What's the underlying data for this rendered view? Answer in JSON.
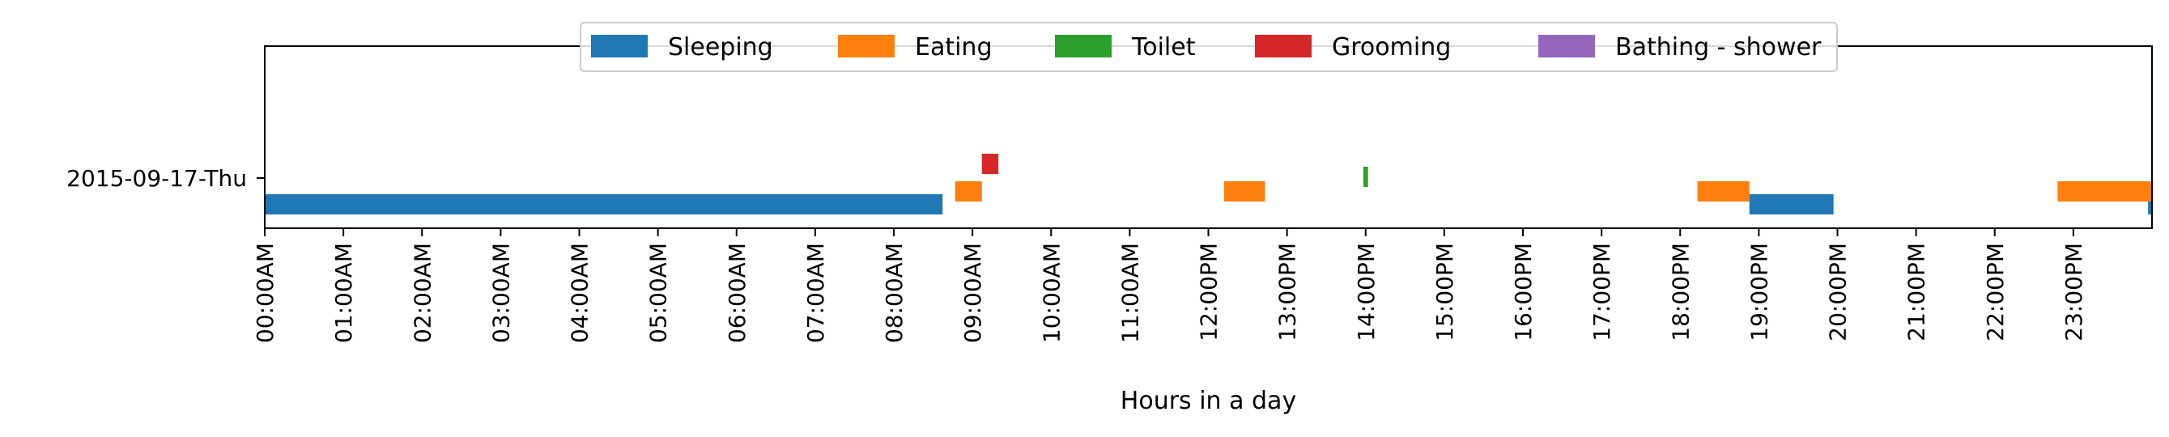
{
  "chart_data": {
    "type": "bar",
    "orientation": "horizontal-timeline",
    "title": "",
    "xlabel": "Hours in a day",
    "ylabel": "",
    "xlim": [
      0,
      24
    ],
    "x_tick_labels": [
      "00:00AM",
      "01:00AM",
      "02:00AM",
      "03:00AM",
      "04:00AM",
      "05:00AM",
      "06:00AM",
      "07:00AM",
      "08:00AM",
      "09:00AM",
      "10:00AM",
      "11:00AM",
      "12:00PM",
      "13:00PM",
      "14:00PM",
      "15:00PM",
      "16:00PM",
      "17:00PM",
      "18:00PM",
      "19:00PM",
      "20:00PM",
      "21:00PM",
      "22:00PM",
      "23:00PM"
    ],
    "y_tick_labels": [
      "2015-09-17-Thu"
    ],
    "grid": false,
    "legend_position": "top-center",
    "series": [
      {
        "name": "Sleeping",
        "color": "#1f77b4",
        "segments": [
          [
            0.0,
            8.62
          ],
          [
            18.88,
            19.95
          ],
          [
            23.95,
            24.0
          ]
        ]
      },
      {
        "name": "Eating",
        "color": "#ff7f0e",
        "segments": [
          [
            8.78,
            9.12
          ],
          [
            12.2,
            12.72
          ],
          [
            18.22,
            18.88
          ],
          [
            22.8,
            24.0
          ]
        ]
      },
      {
        "name": "Toilet",
        "color": "#2ca02c",
        "segments": [
          [
            13.97,
            14.03
          ]
        ]
      },
      {
        "name": "Grooming",
        "color": "#d62728",
        "segments": [
          [
            9.12,
            9.33
          ]
        ]
      },
      {
        "name": "Bathing - shower",
        "color": "#9467bd",
        "segments": []
      }
    ]
  }
}
